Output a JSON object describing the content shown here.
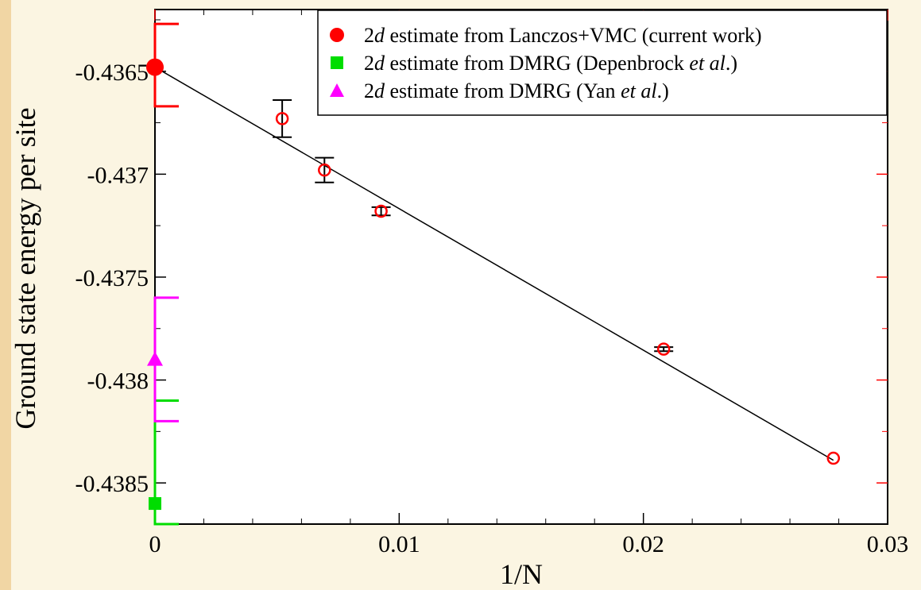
{
  "chart_data": {
    "type": "scatter",
    "xlabel": "1/N",
    "ylabel": "Ground state energy per site",
    "xlim": [
      0,
      0.03
    ],
    "ylim": [
      -0.4387,
      -0.4362
    ],
    "x_ticks": [
      0,
      0.01,
      0.02,
      0.03
    ],
    "x_tick_labels": [
      "0",
      "0.01",
      "0.02",
      "0.03"
    ],
    "y_ticks": [
      -0.4365,
      -0.437,
      -0.4375,
      -0.438,
      -0.4385
    ],
    "y_tick_labels": [
      "-0.4365",
      "-0.437",
      "-0.4375",
      "-0.438",
      "-0.4385"
    ],
    "grid": false,
    "legend_position": "top-right",
    "legend": [
      {
        "marker": "circle",
        "color": "#ff0000",
        "pre": "2",
        "italic": "d",
        "text": " estimate from Lanczos+VMC (current work)"
      },
      {
        "marker": "square",
        "color": "#00dd00",
        "pre": "2",
        "italic": "d",
        "text": "  estimate from DMRG (Depenbrock ",
        "italic2": "et al",
        "post": ".)"
      },
      {
        "marker": "triangle",
        "color": "#ff00ff",
        "pre": "2",
        "italic": "d",
        "text": " estimate from DMRG (Yan ",
        "italic2": "et al",
        "post": ".)"
      }
    ],
    "fit_line": {
      "x": [
        0,
        0.02778
      ],
      "y": [
        -0.43648,
        -0.43839
      ]
    },
    "series": [
      {
        "marker": "open-circle",
        "color": "#ff0000",
        "errorbar_color": "#000000",
        "points": [
          {
            "x": 0.00521,
            "y": -0.43673,
            "err": 9e-05
          },
          {
            "x": 0.00694,
            "y": -0.43698,
            "err": 6e-05
          },
          {
            "x": 0.00926,
            "y": -0.43718,
            "err": 2e-05
          },
          {
            "x": 0.02083,
            "y": -0.43785,
            "err": 1e-05
          },
          {
            "x": 0.02778,
            "y": -0.43838,
            "err": 0.0
          }
        ]
      }
    ],
    "estimates": [
      {
        "label_ref": 0,
        "marker": "filled-circle",
        "color": "#ff0000",
        "x": 0,
        "y": -0.43648,
        "low": -0.43667,
        "high": -0.43627
      },
      {
        "label_ref": 1,
        "marker": "filled-square",
        "color": "#00dd00",
        "x": 0,
        "y": -0.4386,
        "low": -0.4387,
        "high": -0.4381
      },
      {
        "label_ref": 2,
        "marker": "filled-triangle",
        "color": "#ff00ff",
        "x": 0,
        "y": -0.4379,
        "low": -0.4382,
        "high": -0.4376
      }
    ]
  }
}
